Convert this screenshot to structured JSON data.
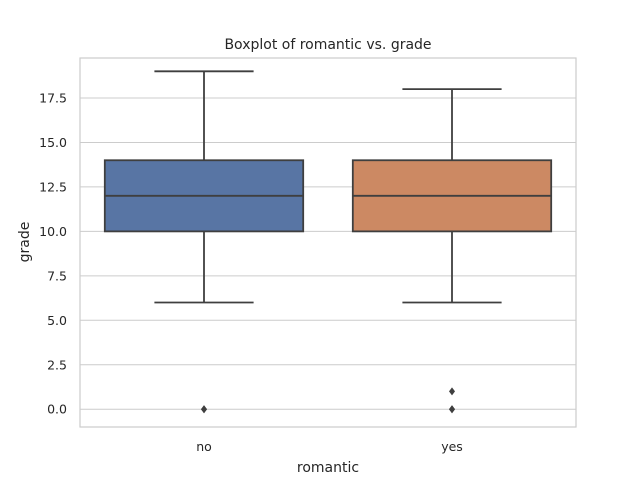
{
  "chart_data": {
    "type": "boxplot",
    "title": "Boxplot of romantic vs. grade",
    "xlabel": "romantic",
    "ylabel": "grade",
    "categories": [
      "no",
      "yes"
    ],
    "ylim": [
      -1,
      19.75
    ],
    "yticks": [
      0.0,
      2.5,
      5.0,
      7.5,
      10.0,
      12.5,
      15.0,
      17.5
    ],
    "ytick_labels": [
      "0.0",
      "2.5",
      "5.0",
      "7.5",
      "10.0",
      "12.5",
      "15.0",
      "17.5"
    ],
    "grid": "horizontal",
    "boxes": [
      {
        "category": "no",
        "whisker_low": 6,
        "q1": 10,
        "median": 12,
        "q3": 14,
        "whisker_high": 19,
        "outliers": [
          0,
          0
        ],
        "color": "#5875a4"
      },
      {
        "category": "yes",
        "whisker_low": 6,
        "q1": 10,
        "median": 12,
        "q3": 14,
        "whisker_high": 18,
        "outliers": [
          0,
          0,
          1
        ],
        "color": "#cc8963"
      }
    ],
    "line_color": "#3f3f3f"
  }
}
